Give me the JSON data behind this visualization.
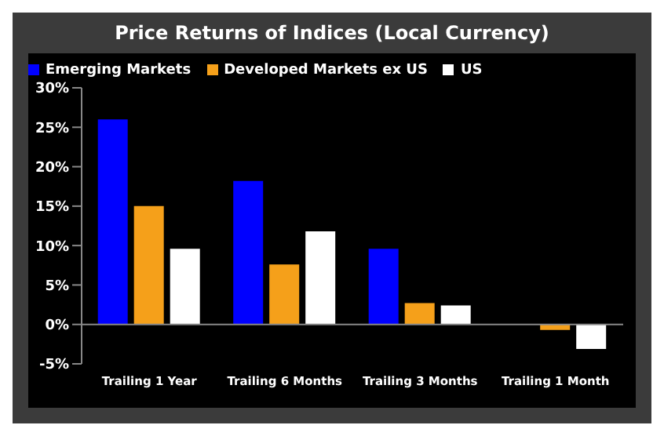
{
  "chart_data": {
    "type": "bar",
    "title": "Price Returns of Indices (Local Currency)",
    "categories": [
      "Trailing 1 Year",
      "Trailing 6 Months",
      "Trailing 3 Months",
      "Trailing 1 Month"
    ],
    "series": [
      {
        "name": "Emerging Markets",
        "color": "#0000ff",
        "values": [
          26.0,
          18.2,
          9.6,
          null
        ]
      },
      {
        "name": "Developed Markets ex US",
        "color": "#f5a01a",
        "values": [
          15.0,
          7.6,
          2.7,
          -0.7
        ]
      },
      {
        "name": "US",
        "color": "#ffffff",
        "values": [
          9.6,
          11.8,
          2.4,
          -3.1
        ]
      }
    ],
    "ylim": [
      -5,
      30
    ],
    "yticks": [
      {
        "value": -5,
        "label": "-5%"
      },
      {
        "value": 0,
        "label": "0%"
      },
      {
        "value": 5,
        "label": "5%"
      },
      {
        "value": 10,
        "label": "10%"
      },
      {
        "value": 15,
        "label": "15%"
      },
      {
        "value": 20,
        "label": "20%"
      },
      {
        "value": 25,
        "label": "25%"
      },
      {
        "value": 30,
        "label": "30%"
      }
    ],
    "ref_lines": [
      {
        "axis": "y",
        "value": 0,
        "color": "#888888"
      }
    ],
    "grid": false,
    "legend": "top left"
  }
}
